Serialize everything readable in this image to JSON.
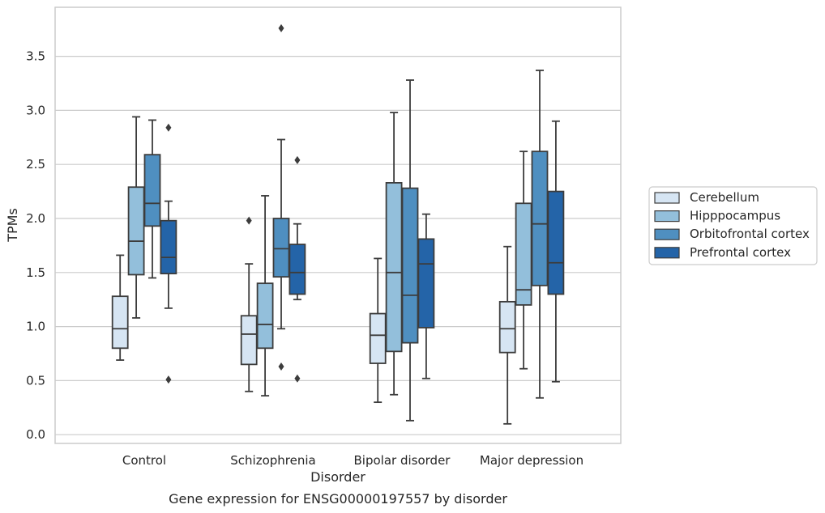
{
  "chart_data": {
    "type": "box",
    "title": "Gene expression for ENSG00000197557 by disorder",
    "xlabel": "Disorder",
    "ylabel": "TPMs",
    "ylim": [
      -0.08,
      3.9
    ],
    "yticks": [
      "0.0",
      "0.5",
      "1.0",
      "1.5",
      "2.0",
      "2.5",
      "3.0",
      "3.5"
    ],
    "grid": "horizontal",
    "legend_position": "right",
    "categories": [
      "Control",
      "Schizophrenia",
      "Bipolar disorder",
      "Major depression"
    ],
    "series": [
      {
        "name": "Cerebellum",
        "color": "#d6e5f3",
        "boxes": [
          {
            "whisker_low": 0.69,
            "q1": 0.8,
            "median": 0.98,
            "q3": 1.28,
            "whisker_high": 1.66,
            "outliers": []
          },
          {
            "whisker_low": 0.4,
            "q1": 0.65,
            "median": 0.93,
            "q3": 1.1,
            "whisker_high": 1.58,
            "outliers": [
              1.98
            ]
          },
          {
            "whisker_low": 0.3,
            "q1": 0.66,
            "median": 0.92,
            "q3": 1.12,
            "whisker_high": 1.63,
            "outliers": []
          },
          {
            "whisker_low": 0.1,
            "q1": 0.76,
            "median": 0.98,
            "q3": 1.23,
            "whisker_high": 1.74,
            "outliers": []
          }
        ]
      },
      {
        "name": "Hipppocampus",
        "color": "#93bfdb",
        "boxes": [
          {
            "whisker_low": 1.08,
            "q1": 1.48,
            "median": 1.79,
            "q3": 2.29,
            "whisker_high": 2.94,
            "outliers": []
          },
          {
            "whisker_low": 0.36,
            "q1": 0.8,
            "median": 1.02,
            "q3": 1.4,
            "whisker_high": 2.21,
            "outliers": []
          },
          {
            "whisker_low": 0.37,
            "q1": 0.77,
            "median": 1.5,
            "q3": 2.33,
            "whisker_high": 2.98,
            "outliers": []
          },
          {
            "whisker_low": 0.61,
            "q1": 1.2,
            "median": 1.34,
            "q3": 2.14,
            "whisker_high": 2.62,
            "outliers": []
          }
        ]
      },
      {
        "name": "Orbitofrontal cortex",
        "color": "#4f8fc0",
        "boxes": [
          {
            "whisker_low": 1.45,
            "q1": 1.93,
            "median": 2.14,
            "q3": 2.59,
            "whisker_high": 2.91,
            "outliers": []
          },
          {
            "whisker_low": 0.98,
            "q1": 1.46,
            "median": 1.72,
            "q3": 2.0,
            "whisker_high": 2.73,
            "outliers": [
              0.63,
              3.76
            ]
          },
          {
            "whisker_low": 0.13,
            "q1": 0.85,
            "median": 1.29,
            "q3": 2.28,
            "whisker_high": 3.28,
            "outliers": []
          },
          {
            "whisker_low": 0.34,
            "q1": 1.38,
            "median": 1.95,
            "q3": 2.62,
            "whisker_high": 3.37,
            "outliers": []
          }
        ]
      },
      {
        "name": "Prefrontal cortex",
        "color": "#2464a8",
        "boxes": [
          {
            "whisker_low": 1.17,
            "q1": 1.49,
            "median": 1.64,
            "q3": 1.98,
            "whisker_high": 2.16,
            "outliers": [
              0.51,
              2.84
            ]
          },
          {
            "whisker_low": 1.25,
            "q1": 1.3,
            "median": 1.5,
            "q3": 1.76,
            "whisker_high": 1.95,
            "outliers": [
              0.52,
              2.54
            ]
          },
          {
            "whisker_low": 0.52,
            "q1": 0.99,
            "median": 1.58,
            "q3": 1.81,
            "whisker_high": 2.04,
            "outliers": []
          },
          {
            "whisker_low": 0.49,
            "q1": 1.3,
            "median": 1.59,
            "q3": 2.25,
            "whisker_high": 2.9,
            "outliers": []
          }
        ]
      }
    ]
  }
}
